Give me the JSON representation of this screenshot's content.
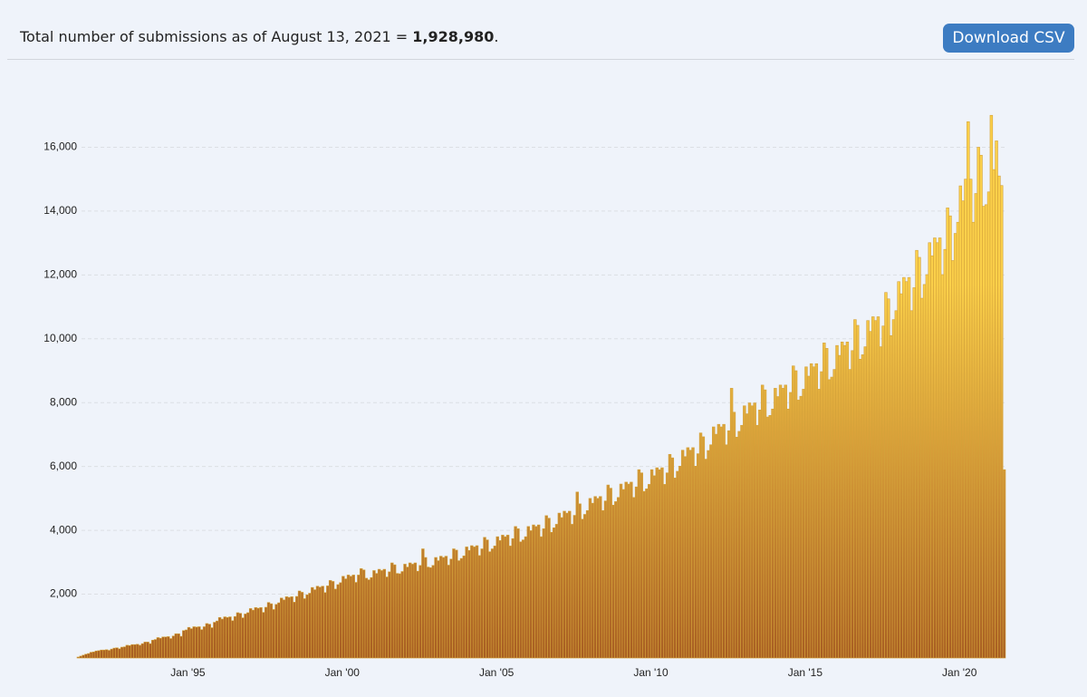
{
  "header": {
    "label": "Total number of submissions as of August 13, 2021 =",
    "total": "1,928,980",
    "end": "."
  },
  "button": "Download CSV",
  "chart_data": {
    "type": "bar",
    "categories": [
      null,
      null,
      null,
      null,
      null,
      null,
      null,
      null,
      null,
      null,
      null,
      null,
      null,
      null,
      null,
      null,
      null,
      null,
      null,
      null,
      null,
      null,
      null,
      null,
      null,
      null,
      null,
      null,
      null,
      null,
      null,
      null,
      null,
      null,
      null,
      null,
      null,
      null,
      null,
      null,
      null,
      "Jan '95",
      null,
      null,
      null,
      null,
      null,
      null,
      null,
      null,
      null,
      null,
      null,
      null,
      null,
      null,
      null,
      null,
      null,
      null,
      null,
      null,
      null,
      null,
      null,
      null,
      null,
      null,
      null,
      null,
      null,
      null,
      null,
      null,
      null,
      null,
      null,
      null,
      null,
      null,
      null,
      null,
      null,
      null,
      null,
      null,
      null,
      null,
      null,
      null,
      null,
      null,
      null,
      null,
      null,
      null,
      null,
      null,
      null,
      null,
      null,
      "Jan '00",
      null,
      null,
      null,
      null,
      null,
      null,
      null,
      null,
      null,
      null,
      null,
      null,
      null,
      null,
      null,
      null,
      null,
      null,
      null,
      null,
      null,
      null,
      null,
      null,
      null,
      null,
      null,
      null,
      null,
      null,
      null,
      null,
      null,
      null,
      null,
      null,
      null,
      null,
      null,
      null,
      null,
      null,
      null,
      null,
      null,
      null,
      null,
      null,
      null,
      null,
      null,
      null,
      null,
      null,
      null,
      null,
      null,
      null,
      null,
      "Jan '05",
      null,
      null,
      null,
      null,
      null,
      null,
      null,
      null,
      null,
      null,
      null,
      null,
      null,
      null,
      null,
      null,
      null,
      null,
      null,
      null,
      null,
      null,
      null,
      null,
      null,
      null,
      null,
      null,
      null,
      null,
      null,
      null,
      null,
      null,
      null,
      null,
      null,
      null,
      null,
      null,
      null,
      null,
      null,
      null,
      null,
      null,
      null,
      null,
      null,
      null,
      null,
      null,
      null,
      null,
      null,
      null,
      null,
      null,
      null,
      "Jan '10",
      null,
      null,
      null,
      null,
      null,
      null,
      null,
      null,
      null,
      null,
      null,
      null,
      null,
      null,
      null,
      null,
      null,
      null,
      null,
      null,
      null,
      null,
      null,
      null,
      null,
      null,
      null,
      null,
      null,
      null,
      null,
      null,
      null,
      null,
      null,
      null,
      null,
      null,
      null,
      null,
      null,
      null,
      null,
      null,
      null,
      null,
      null,
      null,
      null,
      null,
      null,
      null,
      null,
      null,
      null,
      null,
      null,
      null,
      null,
      "Jan '15",
      null,
      null,
      null,
      null,
      null,
      null,
      null,
      null,
      null,
      null,
      null,
      null,
      null,
      null,
      null,
      null,
      null,
      null,
      null,
      null,
      null,
      null,
      null,
      null,
      null,
      null,
      null,
      null,
      null,
      null,
      null,
      null,
      null,
      null,
      null,
      null,
      null,
      null,
      null,
      null,
      null,
      null,
      null,
      null,
      null,
      null,
      null,
      null,
      null,
      null,
      null,
      null,
      null,
      null,
      null,
      null,
      null,
      null,
      null,
      "Jan '20",
      null,
      null,
      null,
      null,
      null,
      null,
      null,
      null,
      null,
      null,
      null,
      null,
      null,
      null,
      null,
      null,
      null,
      null,
      null
    ],
    "values": [
      30,
      60,
      90,
      120,
      140,
      180,
      190,
      220,
      230,
      250,
      250,
      260,
      240,
      280,
      310,
      320,
      290,
      340,
      350,
      400,
      390,
      420,
      420,
      430,
      400,
      450,
      500,
      500,
      450,
      560,
      580,
      640,
      620,
      660,
      660,
      670,
      610,
      690,
      760,
      760,
      680,
      860,
      880,
      960,
      920,
      980,
      970,
      980,
      890,
      980,
      1080,
      1060,
      950,
      1120,
      1160,
      1270,
      1220,
      1290,
      1270,
      1290,
      1170,
      1300,
      1420,
      1400,
      1260,
      1380,
      1420,
      1550,
      1500,
      1580,
      1560,
      1580,
      1430,
      1590,
      1740,
      1700,
      1520,
      1680,
      1730,
      1880,
      1820,
      1920,
      1900,
      1920,
      1750,
      1930,
      2100,
      2060,
      1860,
      1980,
      2030,
      2210,
      2140,
      2250,
      2220,
      2250,
      2050,
      2260,
      2430,
      2400,
      2160,
      2300,
      2360,
      2560,
      2480,
      2600,
      2560,
      2600,
      2370,
      2600,
      2800,
      2760,
      2500,
      2450,
      2520,
      2740,
      2650,
      2780,
      2740,
      2780,
      2540,
      2700,
      2980,
      2920,
      2650,
      2640,
      2710,
      2940,
      2850,
      2980,
      2940,
      2980,
      2720,
      2900,
      3420,
      3150,
      2850,
      2830,
      2900,
      3150,
      3050,
      3190,
      3150,
      3190,
      2910,
      3100,
      3420,
      3380,
      3050,
      3120,
      3200,
      3480,
      3370,
      3520,
      3480,
      3520,
      3210,
      3420,
      3780,
      3700,
      3330,
      3420,
      3510,
      3800,
      3680,
      3850,
      3800,
      3850,
      3510,
      3740,
      4120,
      4050,
      3640,
      3700,
      3800,
      4120,
      3990,
      4170,
      4120,
      4170,
      3800,
      4050,
      4460,
      4380,
      3940,
      4080,
      4190,
      4540,
      4400,
      4600,
      4540,
      4600,
      4190,
      4470,
      5200,
      4830,
      4350,
      4500,
      4620,
      5000,
      4850,
      5060,
      5000,
      5060,
      4620,
      4920,
      5420,
      5320,
      4790,
      4900,
      5030,
      5450,
      5280,
      5510,
      5450,
      5510,
      5030,
      5360,
      5900,
      5800,
      5220,
      5300,
      5440,
      5900,
      5710,
      5960,
      5900,
      5960,
      5440,
      5800,
      6380,
      6270,
      5640,
      5850,
      6010,
      6510,
      6310,
      6590,
      6510,
      6590,
      6010,
      6400,
      7050,
      6930,
      6230,
      6500,
      6680,
      7240,
      7010,
      7320,
      7240,
      7320,
      6680,
      7120,
      8450,
      7700,
      6920,
      7100,
      7290,
      7900,
      7650,
      7990,
      7900,
      7990,
      7290,
      7770,
      8550,
      8400,
      7550,
      7600,
      7800,
      8450,
      8190,
      8550,
      8450,
      8550,
      7800,
      8320,
      9150,
      9000,
      8080,
      8200,
      8420,
      9120,
      8830,
      9220,
      9120,
      9220,
      8420,
      8970,
      9870,
      9700,
      8720,
      8800,
      9040,
      9790,
      9480,
      9900,
      9790,
      9900,
      9040,
      9630,
      10600,
      10420,
      9360,
      9500,
      9750,
      10570,
      10230,
      10690,
      10570,
      10690,
      9750,
      10400,
      11450,
      11250,
      10100,
      10600,
      10880,
      11790,
      11410,
      11920,
      11790,
      11920,
      10880,
      11600,
      12770,
      12550,
      11270,
      11700,
      12010,
      13010,
      12600,
      13160,
      13010,
      13160,
      12010,
      12800,
      14100,
      13850,
      12450,
      13300,
      13650,
      14790,
      14320,
      15000,
      16800,
      15000,
      13650,
      14550,
      16000,
      15750,
      14150,
      14200,
      14600,
      17000,
      15300,
      16200,
      15100,
      14800,
      5900
    ],
    "color": "#fbd04a",
    "color_bottom": "#a85e22",
    "edge_color": "#d4a23a",
    "ylim": [
      0,
      18000
    ],
    "yticks": [
      {
        "value": 2000,
        "label": "2,000"
      },
      {
        "value": 4000,
        "label": "4,000"
      },
      {
        "value": 6000,
        "label": "6,000"
      },
      {
        "value": 8000,
        "label": "8,000"
      },
      {
        "value": 10000,
        "label": "10,000"
      },
      {
        "value": 12000,
        "label": "12,000"
      },
      {
        "value": 14000,
        "label": "14,000"
      },
      {
        "value": 16000,
        "label": "16,000"
      }
    ],
    "grid": true
  }
}
